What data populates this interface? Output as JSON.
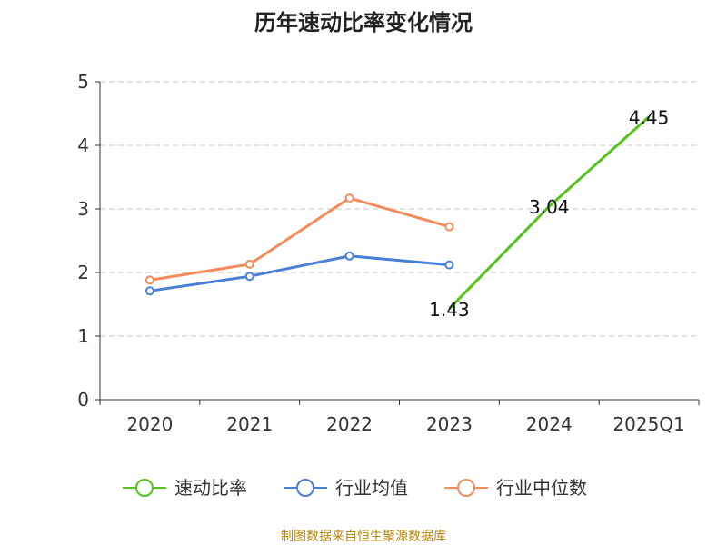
{
  "chart_data": {
    "type": "line",
    "title": "历年速动比率变化情况",
    "categories": [
      "2020",
      "2021",
      "2022",
      "2023",
      "2024",
      "2025Q1"
    ],
    "ylim": [
      0,
      5
    ],
    "yticks": [
      "0",
      "1",
      "2",
      "3",
      "4",
      "5"
    ],
    "grid": true,
    "legend_position": "bottom",
    "series": [
      {
        "name": "速动比率",
        "color": "#52c41a",
        "values": [
          null,
          null,
          null,
          1.43,
          3.04,
          4.45
        ],
        "labels": [
          null,
          null,
          null,
          "1.43",
          "3.04",
          "4.45"
        ],
        "markers": false
      },
      {
        "name": "行业均值",
        "color": "#4a7fd8",
        "values": [
          1.71,
          1.94,
          2.26,
          2.12,
          null,
          null
        ],
        "labels": [],
        "markers": true
      },
      {
        "name": "行业中位数",
        "color": "#f28c5c",
        "values": [
          1.88,
          2.13,
          3.17,
          2.72,
          null,
          null
        ],
        "labels": [],
        "markers": true
      }
    ]
  },
  "footer": {
    "source": "制图数据来自恒生聚源数据库"
  }
}
